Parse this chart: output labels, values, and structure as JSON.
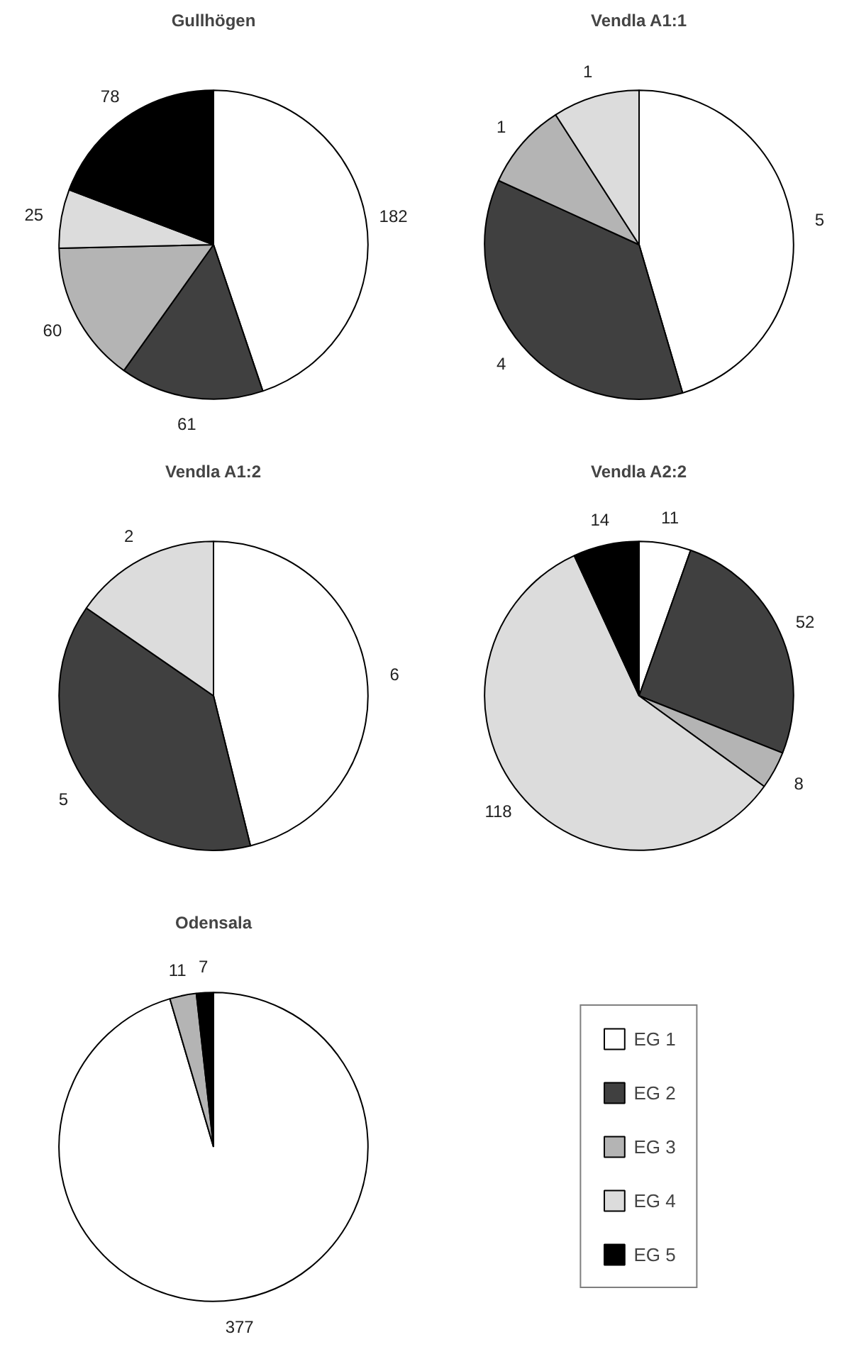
{
  "chart_data": [
    {
      "type": "pie",
      "title": "Gullhögen",
      "categories": [
        "EG 1",
        "EG 2",
        "EG 3",
        "EG 4",
        "EG 5"
      ],
      "values": [
        182,
        61,
        60,
        25,
        78
      ],
      "colors": [
        "#ffffff",
        "#404040",
        "#b4b4b4",
        "#dcdcdc",
        "#000000"
      ],
      "data_labels": true,
      "legend": "bottom right"
    },
    {
      "type": "pie",
      "title": "Vendla A1:1",
      "categories": [
        null,
        null,
        null,
        null,
        null
      ],
      "values": [
        5,
        4,
        1,
        1,
        null
      ],
      "colors": [
        "#ffffff",
        "#404040",
        "#b4b4b4",
        "#dcdcdc",
        "#000000"
      ],
      "data_labels": true
    },
    {
      "type": "pie",
      "title": "Vendla A1:2",
      "categories": [
        null,
        null,
        null,
        null,
        null
      ],
      "values": [
        6,
        5,
        null,
        2,
        null
      ],
      "colors": [
        "#ffffff",
        "#404040",
        "#b4b4b4",
        "#dcdcdc",
        "#000000"
      ],
      "data_labels": true
    },
    {
      "type": "pie",
      "title": "Vendla A2:2",
      "categories": [
        null,
        null,
        null,
        null,
        null
      ],
      "values": [
        11,
        52,
        8,
        118,
        14
      ],
      "colors": [
        "#ffffff",
        "#404040",
        "#b4b4b4",
        "#dcdcdc",
        "#000000"
      ],
      "data_labels": true
    },
    {
      "type": "pie",
      "title": "Odensala",
      "categories": [
        null,
        null,
        null,
        null,
        null
      ],
      "values": [
        377,
        null,
        11,
        null,
        7
      ],
      "colors": [
        "#ffffff",
        "#404040",
        "#b4b4b4",
        "#dcdcdc",
        "#000000"
      ],
      "data_labels": true
    }
  ]
}
